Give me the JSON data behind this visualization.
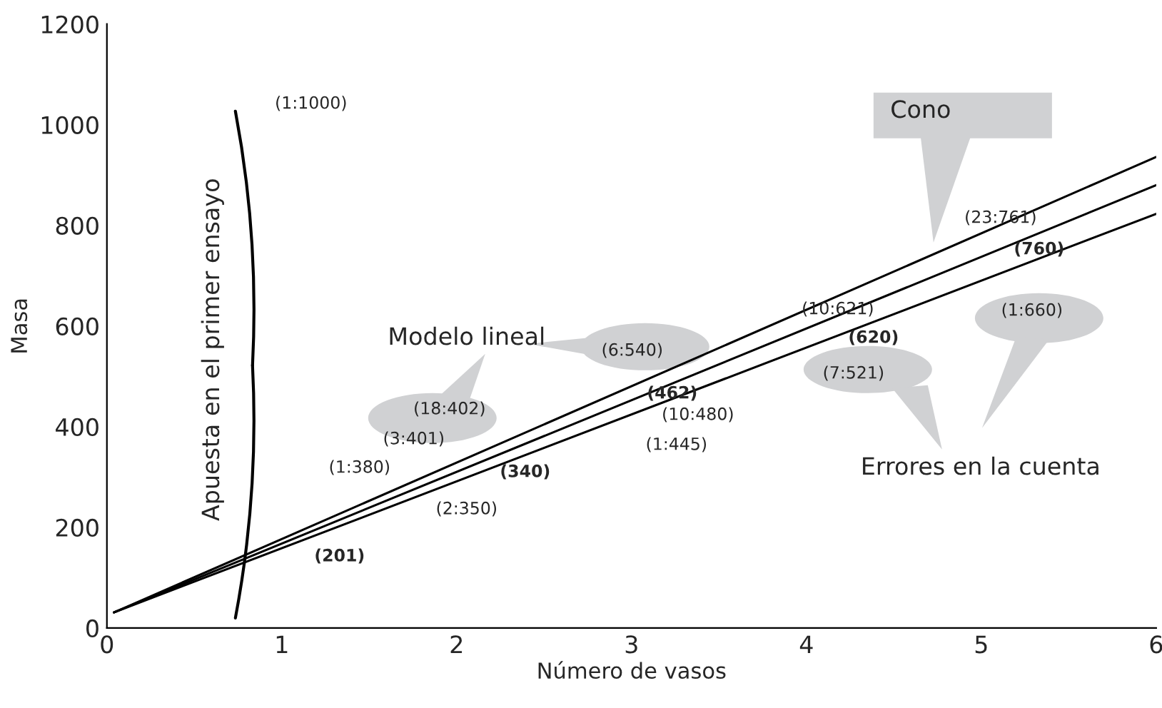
{
  "chart_data": {
    "type": "line",
    "xlabel": "Número de vasos",
    "ylabel": "Masa",
    "x": [
      0.04,
      6
    ],
    "series": [
      {
        "color": "#000000",
        "values": [
          31,
          936
        ]
      },
      {
        "color": "#000000",
        "values": [
          31,
          880
        ]
      },
      {
        "color": "#000000",
        "values": [
          31,
          823
        ]
      }
    ],
    "xlim": [
      0,
      6
    ],
    "xticks": [
      0,
      1,
      2,
      3,
      4,
      5,
      6
    ],
    "ylim": [
      0,
      1200
    ],
    "yticks": [
      0,
      200,
      400,
      600,
      800,
      1000,
      1200
    ],
    "grid": false,
    "marker": "none",
    "line_style": "solid",
    "annotations": [
      "Apuesta en el primer ensayo",
      "(1:1000)",
      "Modelo lineal",
      "(18:402)",
      "(3:401)",
      "(1:380)",
      "(340)",
      "(2:350)",
      "(201)",
      "(6:540)",
      "(462)",
      "(10:480)",
      "(1:445)",
      "(10:621)",
      "(620)",
      "(7:521)",
      "Cono",
      "(23:761)",
      "(760)",
      "(1:660)",
      "Errores en la cuenta"
    ]
  }
}
